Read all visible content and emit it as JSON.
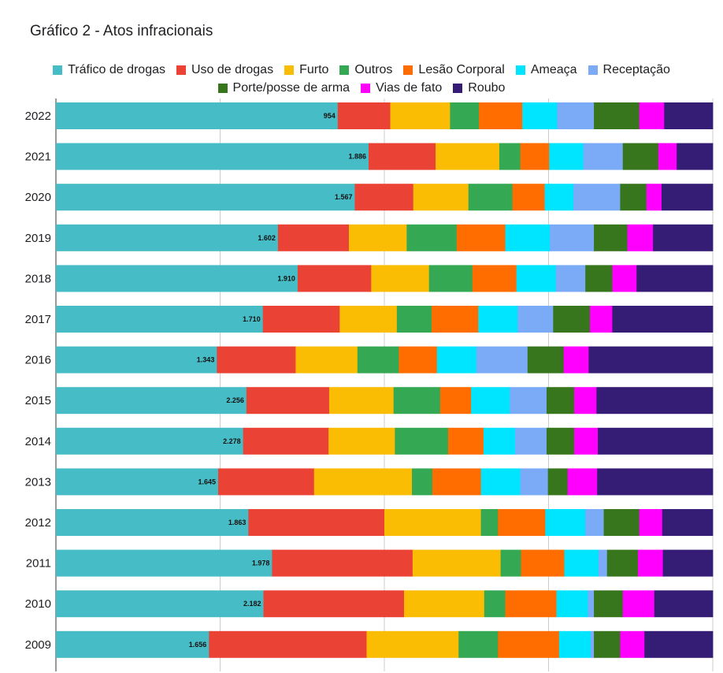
{
  "chart_data": {
    "type": "bar",
    "orientation": "horizontal",
    "stacked": "percent",
    "title": "Gráfico 2 - Atos infracionais",
    "xlabel": "",
    "ylabel": "",
    "xlim": [
      0,
      1
    ],
    "grid": true,
    "legend_position": "top",
    "categories": [
      "2022",
      "2021",
      "2020",
      "2019",
      "2018",
      "2017",
      "2016",
      "2015",
      "2014",
      "2013",
      "2012",
      "2011",
      "2010",
      "2009"
    ],
    "series": [
      {
        "name": "Tráfico de drogas",
        "color": "#46bdc6",
        "shown_labels": [
          "954",
          "1.886",
          "1.567",
          "1.602",
          "1.910",
          "1.710",
          "1.343",
          "2.256",
          "2.278",
          "1.645",
          "1.863",
          "1.978",
          "2.182",
          "1.656"
        ],
        "values": [
          0.429,
          0.476,
          0.455,
          0.338,
          0.368,
          0.315,
          0.245,
          0.29,
          0.285,
          0.247,
          0.293,
          0.329,
          0.316,
          0.233
        ]
      },
      {
        "name": "Uso de drogas",
        "color": "#ea4335",
        "values": [
          0.08,
          0.102,
          0.089,
          0.108,
          0.112,
          0.117,
          0.12,
          0.126,
          0.13,
          0.146,
          0.207,
          0.214,
          0.214,
          0.24
        ]
      },
      {
        "name": "Furto",
        "color": "#fbbc04",
        "values": [
          0.091,
          0.097,
          0.084,
          0.088,
          0.088,
          0.087,
          0.094,
          0.098,
          0.101,
          0.149,
          0.147,
          0.134,
          0.122,
          0.14
        ]
      },
      {
        "name": "Outros",
        "color": "#34a853",
        "values": [
          0.044,
          0.032,
          0.067,
          0.076,
          0.066,
          0.053,
          0.063,
          0.071,
          0.081,
          0.031,
          0.026,
          0.031,
          0.032,
          0.06
        ]
      },
      {
        "name": "Lesão Corporal",
        "color": "#ff6d01",
        "values": [
          0.066,
          0.044,
          0.049,
          0.074,
          0.067,
          0.071,
          0.058,
          0.047,
          0.054,
          0.074,
          0.072,
          0.066,
          0.078,
          0.093
        ]
      },
      {
        "name": "Ameaça",
        "color": "#00e5ff",
        "values": [
          0.053,
          0.052,
          0.044,
          0.068,
          0.06,
          0.06,
          0.06,
          0.059,
          0.048,
          0.06,
          0.061,
          0.052,
          0.048,
          0.048
        ]
      },
      {
        "name": "Receptação",
        "color": "#7baaf7",
        "values": [
          0.056,
          0.06,
          0.071,
          0.067,
          0.045,
          0.054,
          0.078,
          0.056,
          0.048,
          0.042,
          0.028,
          0.013,
          0.009,
          0.005
        ]
      },
      {
        "name": "Porte/posse de arma",
        "color": "#38761d",
        "values": [
          0.069,
          0.054,
          0.04,
          0.051,
          0.041,
          0.056,
          0.055,
          0.042,
          0.042,
          0.03,
          0.054,
          0.047,
          0.044,
          0.04
        ]
      },
      {
        "name": "Vias de fato",
        "color": "#ff00ff",
        "values": [
          0.038,
          0.028,
          0.023,
          0.039,
          0.037,
          0.034,
          0.038,
          0.034,
          0.036,
          0.045,
          0.035,
          0.038,
          0.048,
          0.037
        ]
      },
      {
        "name": "Roubo",
        "color": "#351c75",
        "values": [
          0.074,
          0.055,
          0.078,
          0.091,
          0.116,
          0.153,
          0.189,
          0.177,
          0.175,
          0.176,
          0.077,
          0.076,
          0.089,
          0.104
        ]
      }
    ]
  }
}
